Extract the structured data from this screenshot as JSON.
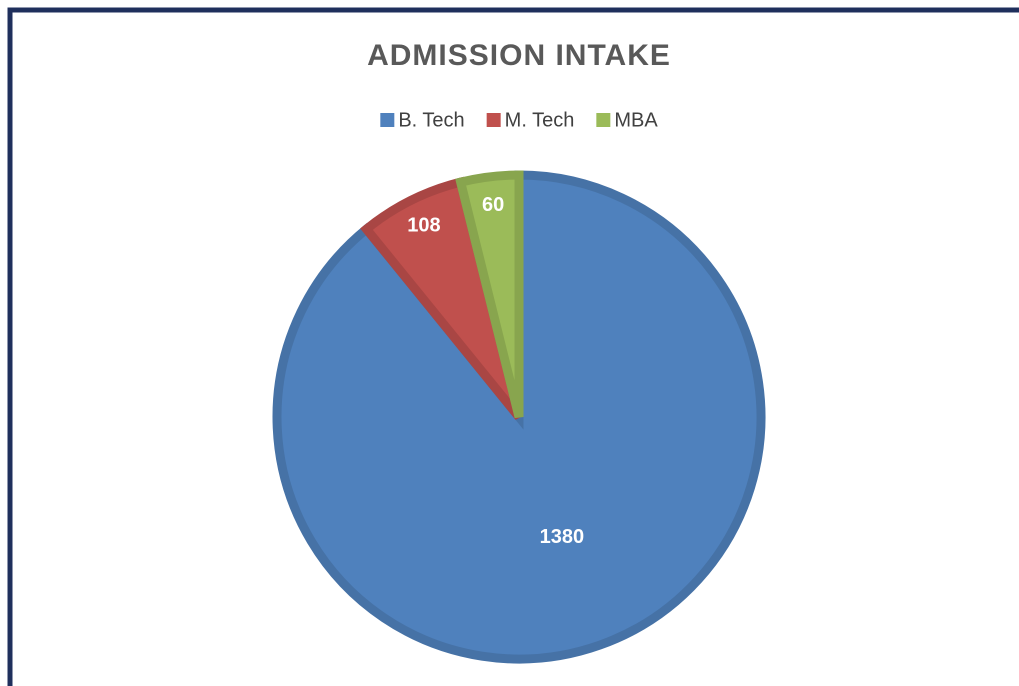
{
  "chart_data": {
    "type": "pie",
    "title": "ADMISSION INTAKE",
    "categories": [
      "B. Tech",
      "M. Tech",
      "MBA"
    ],
    "values": [
      1380,
      108,
      60
    ],
    "colors": [
      "#4f81bd",
      "#c0504d",
      "#9bbb59"
    ],
    "legend": "top"
  }
}
